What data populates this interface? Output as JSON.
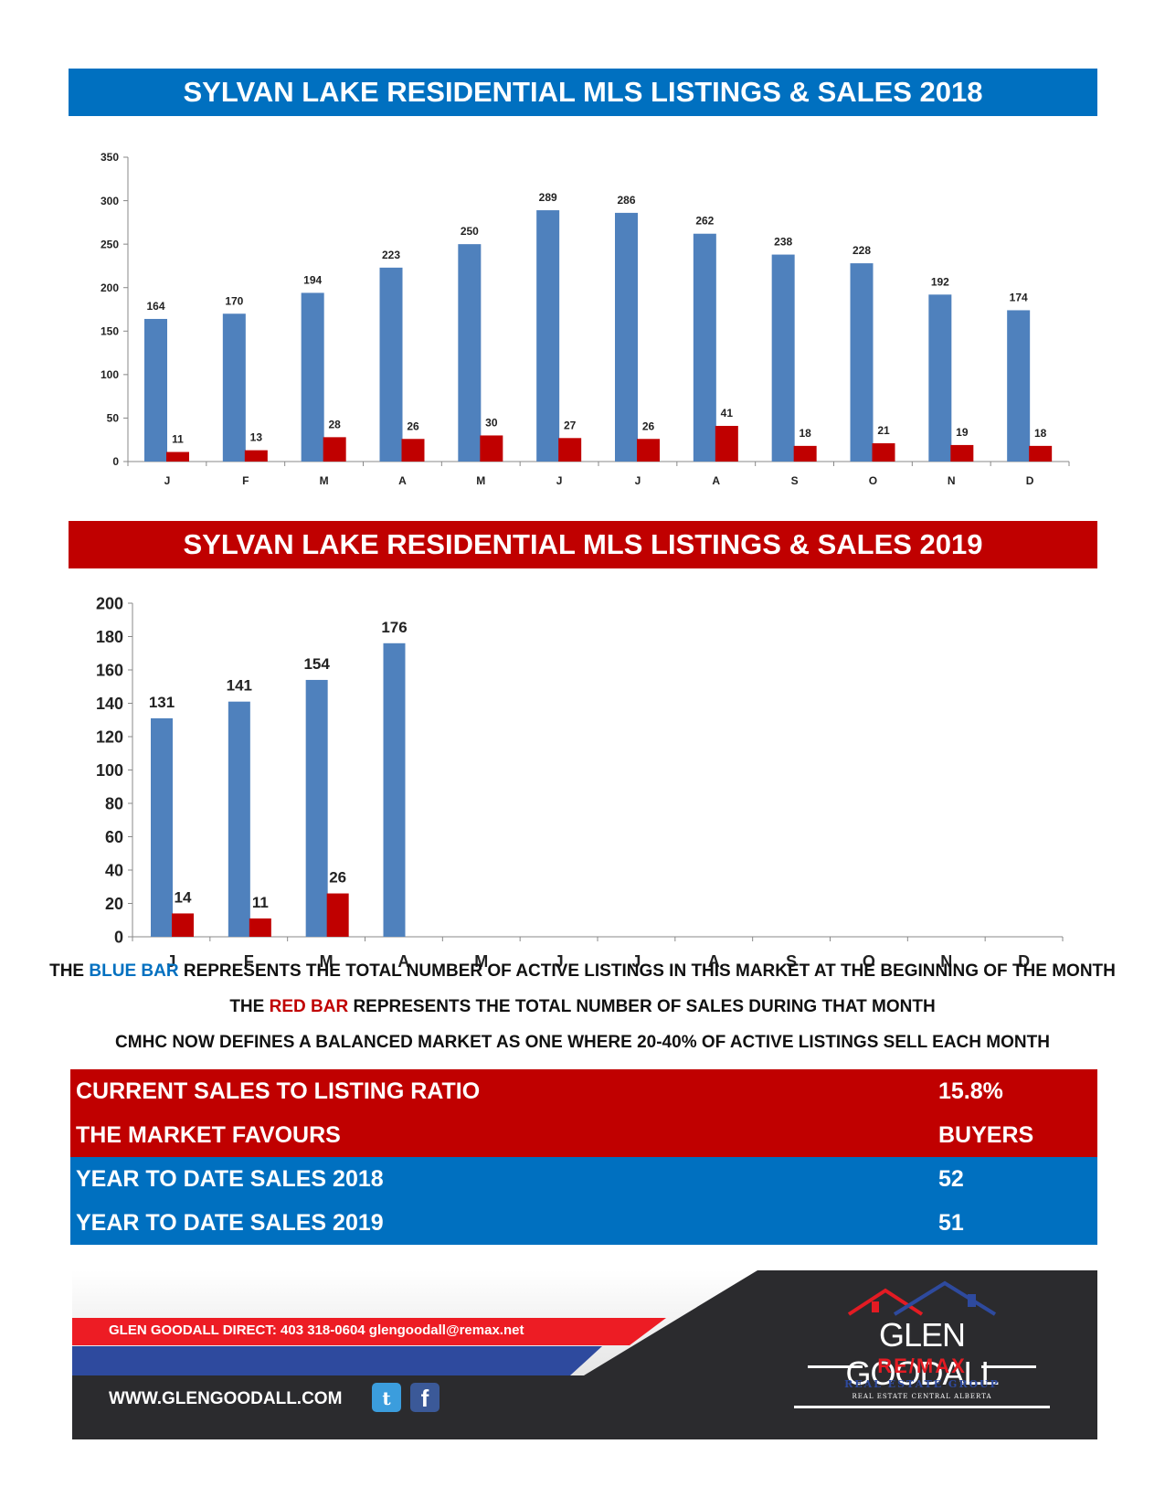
{
  "title_2018": "SYLVAN LAKE RESIDENTIAL MLS LISTINGS & SALES 2018",
  "title_2019": "SYLVAN LAKE RESIDENTIAL MLS LISTINGS & SALES 2019",
  "colors": {
    "blue_bar": "#4f81bd",
    "red_bar": "#c00000",
    "blue_banner": "#0070c0",
    "red_banner": "#c00000"
  },
  "chart_data": [
    {
      "type": "bar",
      "categories": [
        "J",
        "F",
        "M",
        "A",
        "M",
        "J",
        "J",
        "A",
        "S",
        "O",
        "N",
        "D"
      ],
      "series": [
        {
          "values": [
            164,
            170,
            194,
            223,
            250,
            289,
            286,
            262,
            238,
            228,
            192,
            174
          ]
        },
        {
          "values": [
            11,
            13,
            28,
            26,
            30,
            27,
            26,
            41,
            18,
            21,
            19,
            18
          ]
        }
      ],
      "ylim": [
        0,
        350
      ],
      "yticks": [
        0,
        50,
        100,
        150,
        200,
        250,
        300,
        350
      ],
      "grid": false
    },
    {
      "type": "bar",
      "categories": [
        "J",
        "F",
        "M",
        "A",
        "M",
        "J",
        "J",
        "A",
        "S",
        "O",
        "N",
        "D"
      ],
      "series": [
        {
          "values": [
            131,
            141,
            154,
            176,
            null,
            null,
            null,
            null,
            null,
            null,
            null,
            null
          ]
        },
        {
          "values": [
            14,
            11,
            26,
            null,
            null,
            null,
            null,
            null,
            null,
            null,
            null,
            null
          ]
        }
      ],
      "ylim": [
        0,
        200
      ],
      "yticks": [
        0,
        20,
        40,
        60,
        80,
        100,
        120,
        140,
        160,
        180,
        200
      ],
      "grid": false
    }
  ],
  "notes": {
    "line1_pre": "THE ",
    "line1_color": "BLUE BAR",
    "line1_post": " REPRESENTS THE TOTAL NUMBER OF ACTIVE LISTINGS IN THIS MARKET AT THE BEGINNING OF THE MONTH",
    "line2_pre": "THE ",
    "line2_color": "RED BAR",
    "line2_post": " REPRESENTS THE TOTAL NUMBER OF SALES DURING THAT MONTH",
    "line3": "CMHC NOW DEFINES A BALANCED MARKET AS ONE WHERE 20-40% OF ACTIVE LISTINGS SELL EACH MONTH"
  },
  "stats": [
    {
      "label": "CURRENT SALES TO LISTING RATIO",
      "value": "15.8%"
    },
    {
      "label": "THE MARKET FAVOURS",
      "value": "BUYERS"
    },
    {
      "label": "YEAR TO DATE SALES 2018",
      "value": "52"
    },
    {
      "label": "YEAR TO DATE SALES 2019",
      "value": "51"
    }
  ],
  "footer": {
    "contact": "GLEN GOODALL  DIRECT: 403 318-0604  glengoodall@remax.net",
    "website": "WWW.GLENGOODALL.COM",
    "brand_name": "GLEN GOODALL",
    "brand_remax": "RE/MAX",
    "brand_group": "REAL ESTATE GROUP",
    "brand_region": "REAL ESTATE CENTRAL ALBERTA",
    "icons": [
      "twitter-icon",
      "facebook-icon",
      "house-roof-icon"
    ]
  }
}
